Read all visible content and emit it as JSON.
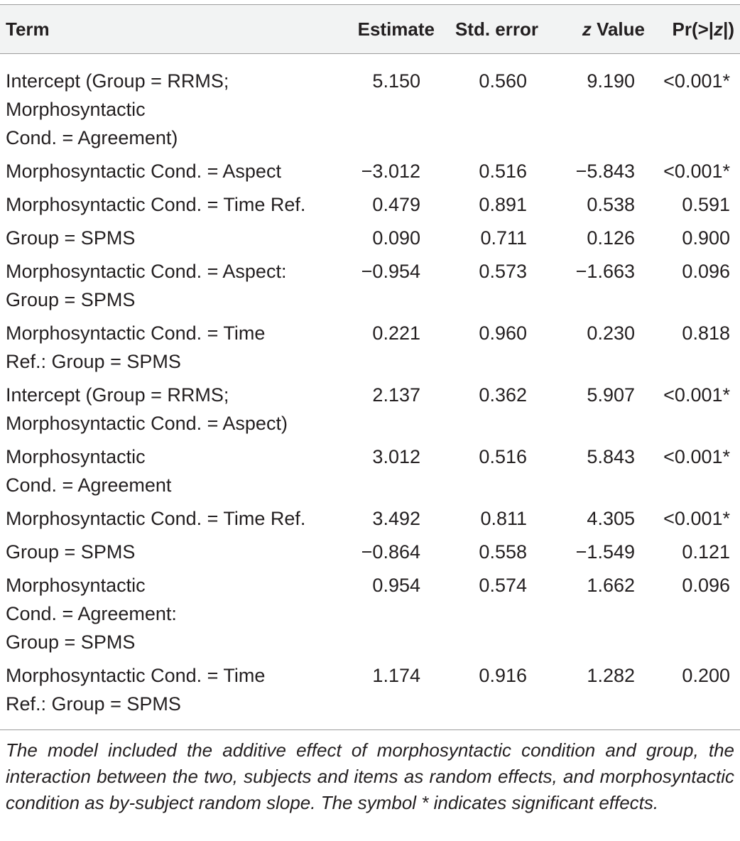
{
  "table": {
    "headers": {
      "term": "Term",
      "estimate": "Estimate",
      "std_error": "Std. error",
      "z_value_symbol": "z",
      "z_value_label": " Value",
      "p_prefix": "Pr(>|",
      "p_symbol": "z",
      "p_suffix": "|)"
    },
    "rows": [
      {
        "term_lines": [
          "Intercept (Group = RRMS;",
          "Morphosyntactic",
          "Cond. = Agreement)"
        ],
        "estimate": "5.150",
        "std_error": "0.560",
        "z_value": "9.190",
        "p_value": "<0.001*"
      },
      {
        "term_lines": [
          "Morphosyntactic Cond. = Aspect"
        ],
        "estimate": "−3.012",
        "std_error": "0.516",
        "z_value": "−5.843",
        "p_value": "<0.001*"
      },
      {
        "term_lines": [
          "Morphosyntactic Cond. = Time Ref."
        ],
        "estimate": "0.479",
        "std_error": "0.891",
        "z_value": "0.538",
        "p_value": "0.591"
      },
      {
        "term_lines": [
          "Group = SPMS"
        ],
        "estimate": "0.090",
        "std_error": "0.711",
        "z_value": "0.126",
        "p_value": "0.900"
      },
      {
        "term_lines": [
          "Morphosyntactic Cond. = Aspect:",
          "Group = SPMS"
        ],
        "estimate": "−0.954",
        "std_error": "0.573",
        "z_value": "−1.663",
        "p_value": "0.096"
      },
      {
        "term_lines": [
          "Morphosyntactic Cond. = Time",
          "Ref.: Group = SPMS"
        ],
        "estimate": "0.221",
        "std_error": "0.960",
        "z_value": "0.230",
        "p_value": "0.818"
      },
      {
        "term_lines": [
          "Intercept (Group = RRMS;",
          "Morphosyntactic Cond. = Aspect)"
        ],
        "estimate": "2.137",
        "std_error": "0.362",
        "z_value": "5.907",
        "p_value": "<0.001*"
      },
      {
        "term_lines": [
          "Morphosyntactic",
          "Cond. = Agreement"
        ],
        "estimate": "3.012",
        "std_error": "0.516",
        "z_value": "5.843",
        "p_value": "<0.001*"
      },
      {
        "term_lines": [
          "Morphosyntactic Cond. = Time Ref."
        ],
        "estimate": "3.492",
        "std_error": "0.811",
        "z_value": "4.305",
        "p_value": "<0.001*"
      },
      {
        "term_lines": [
          "Group = SPMS"
        ],
        "estimate": "−0.864",
        "std_error": "0.558",
        "z_value": "−1.549",
        "p_value": "0.121"
      },
      {
        "term_lines": [
          "Morphosyntactic",
          "Cond. = Agreement:",
          "Group = SPMS"
        ],
        "estimate": "0.954",
        "std_error": "0.574",
        "z_value": "1.662",
        "p_value": "0.096"
      },
      {
        "term_lines": [
          "Morphosyntactic Cond. = Time",
          "Ref.: Group = SPMS"
        ],
        "estimate": "1.174",
        "std_error": "0.916",
        "z_value": "1.282",
        "p_value": "0.200"
      }
    ]
  },
  "footnote": "The model included the additive effect of morphosyntactic condition and group, the interaction between the two, subjects and items as random effects, and morphosyntactic condition as by-subject random slope. The symbol * indicates significant effects."
}
